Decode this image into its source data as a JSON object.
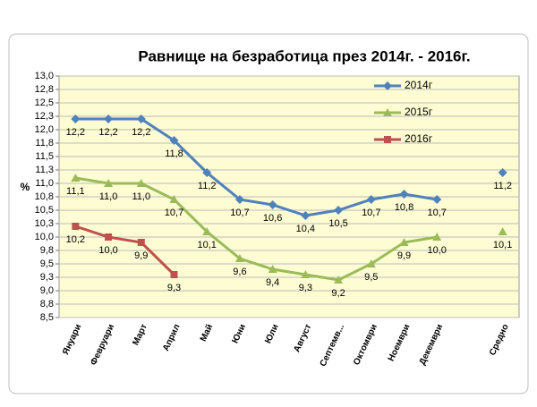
{
  "chart_data": {
    "type": "line",
    "title": "Равнище на безработица през 2014г. - 2016г.",
    "y_label": "%",
    "categories": [
      "Януари",
      "Февруари",
      "Март",
      "Април",
      "Май",
      "Юни",
      "Юли",
      "Август",
      "Септемв...",
      "Октомври",
      "Ноември",
      "Декември",
      null,
      "Средно"
    ],
    "series": [
      {
        "name": "2014г",
        "color": "#4f81bd",
        "marker": "diamond",
        "values": [
          12.2,
          12.2,
          12.2,
          11.8,
          11.2,
          10.7,
          10.6,
          10.4,
          10.5,
          10.7,
          10.8,
          10.7,
          null,
          11.2
        ],
        "value_labels": [
          "12,2",
          "12,2",
          "12,2",
          "11,8",
          "11,2",
          "10,7",
          "10,6",
          "10,4",
          "10,5",
          "10,7",
          "10,8",
          "10,7",
          null,
          "11,2"
        ]
      },
      {
        "name": "2015г",
        "color": "#9bbb59",
        "marker": "triangle",
        "values": [
          11.1,
          11.0,
          11.0,
          10.7,
          10.1,
          9.6,
          9.4,
          9.3,
          9.2,
          9.5,
          9.9,
          10.0,
          null,
          10.1
        ],
        "value_labels": [
          "11,1",
          "11,0",
          "11,0",
          "10,7",
          "10,1",
          "9,6",
          "9,4",
          "9,3",
          "9,2",
          "9,5",
          "9,9",
          "10,0",
          null,
          "10,1"
        ]
      },
      {
        "name": "2016г",
        "color": "#c0504d",
        "marker": "square",
        "values": [
          10.2,
          10.0,
          9.9,
          9.3,
          null,
          null,
          null,
          null,
          null,
          null,
          null,
          null,
          null,
          null
        ],
        "value_labels": [
          "10,2",
          "10,0",
          "9,9",
          "9,3",
          null,
          null,
          null,
          null,
          null,
          null,
          null,
          null,
          null,
          null
        ]
      }
    ],
    "ylim": [
      8.5,
      13.0
    ],
    "yticks": [
      {
        "value": 8.5,
        "label": "8,5"
      },
      {
        "value": 8.75,
        "label": "8,8"
      },
      {
        "value": 9.0,
        "label": "9,0"
      },
      {
        "value": 9.25,
        "label": "9,3"
      },
      {
        "value": 9.5,
        "label": "9,5"
      },
      {
        "value": 9.75,
        "label": "9,8"
      },
      {
        "value": 10.0,
        "label": "10,0"
      },
      {
        "value": 10.25,
        "label": "10,3"
      },
      {
        "value": 10.5,
        "label": "10,5"
      },
      {
        "value": 10.75,
        "label": "10,8"
      },
      {
        "value": 11.0,
        "label": "11,0"
      },
      {
        "value": 11.25,
        "label": "11,3"
      },
      {
        "value": 11.5,
        "label": "11,5"
      },
      {
        "value": 11.75,
        "label": "11,8"
      },
      {
        "value": 12.0,
        "label": "12,0"
      },
      {
        "value": 12.25,
        "label": "12,3"
      },
      {
        "value": 12.5,
        "label": "12,5"
      },
      {
        "value": 12.75,
        "label": "12,8"
      },
      {
        "value": 13.0,
        "label": "13,0"
      }
    ],
    "grid": true,
    "legend": "top-right",
    "background": "#fdfcd2"
  }
}
